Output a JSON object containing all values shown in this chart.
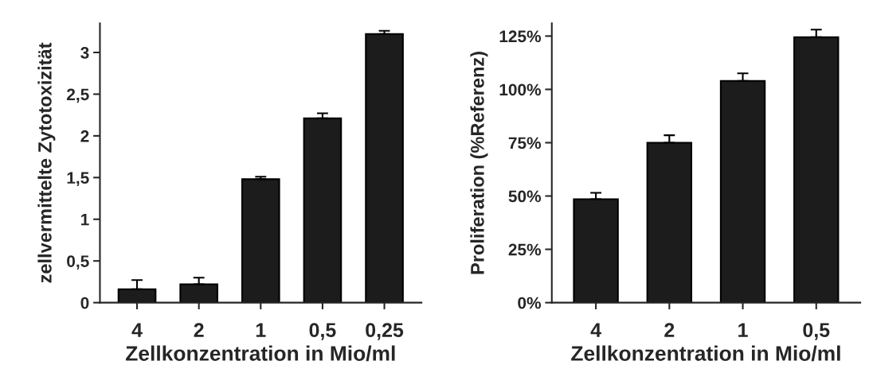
{
  "chart_data": [
    {
      "type": "bar",
      "xlabel": "Zellkonzentration in Mio/ml",
      "ylabel": "zellvermittelte Zytotoxizität",
      "categories": [
        "4",
        "2",
        "1",
        "0,5",
        "0,25"
      ],
      "values": [
        0.16,
        0.22,
        1.48,
        2.21,
        3.22
      ],
      "errors": [
        [
          0.16,
          0.27
        ],
        [
          0.22,
          0.3
        ],
        [
          1.48,
          1.51
        ],
        [
          2.21,
          2.27
        ],
        [
          3.22,
          3.26
        ]
      ],
      "color": "#1c1c1c",
      "ylim": [
        0,
        3.35
      ],
      "yticks": [
        0,
        {
          "value": 0.5,
          "label": "0,5"
        },
        1,
        {
          "value": 1.5,
          "label": "1,5"
        },
        2,
        {
          "value": 2.5,
          "label": "2,5"
        },
        3
      ],
      "grid": false,
      "legend": false
    },
    {
      "type": "bar",
      "xlabel": "Zellkonzentration in Mio/ml",
      "ylabel": "Proliferation (%Referenz)",
      "categories": [
        "4",
        "2",
        "1",
        "0,5"
      ],
      "values": [
        48.5,
        75,
        104,
        124.5
      ],
      "errors": [
        [
          48.5,
          51.5
        ],
        [
          75,
          78.5
        ],
        [
          104,
          107.5
        ],
        [
          124.5,
          128
        ]
      ],
      "color": "#1c1c1c",
      "ylim": [
        0,
        131
      ],
      "yticks": [
        {
          "value": 0,
          "label": "0%"
        },
        {
          "value": 25,
          "label": "25%"
        },
        {
          "value": 50,
          "label": "50%"
        },
        {
          "value": 75,
          "label": "75%"
        },
        {
          "value": 100,
          "label": "100%"
        },
        {
          "value": 125,
          "label": "125%"
        }
      ],
      "grid": false,
      "legend": false
    }
  ]
}
